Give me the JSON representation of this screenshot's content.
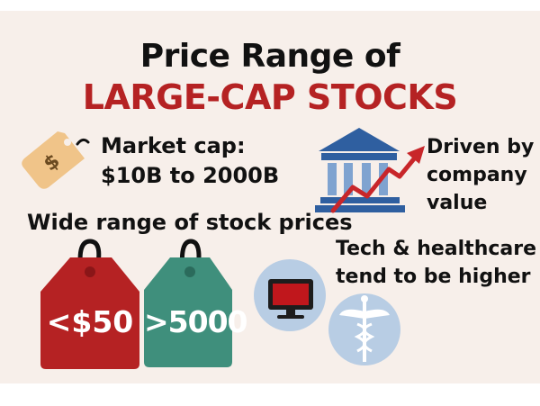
{
  "title": {
    "line1": "Price Range of",
    "line2": "LARGE-CAP STOCKS"
  },
  "market_cap": {
    "line1": "Market cap:",
    "line2": "$10B to 2000B"
  },
  "driven": {
    "line1": "Driven by",
    "line2": "company",
    "line3": "value"
  },
  "wide_range": "Wide range of stock prices",
  "tags": {
    "low": "<$50",
    "high": ">5000"
  },
  "tech": {
    "line1": "Tech & healthcare",
    "line2": "tend to be higher"
  },
  "colors": {
    "background": "#f7efea",
    "title_accent": "#b52223",
    "red_tag": "#b52223",
    "green_tag": "#3f8f7c",
    "bank_blue": "#2f5fa0",
    "circle_blue": "#b8cde4",
    "price_tag_tan": "#f0c489"
  },
  "icons": [
    "price-tag-icon",
    "bank-icon",
    "trend-arrow-icon",
    "red-price-tag-icon",
    "green-price-tag-icon",
    "monitor-icon",
    "caduceus-icon"
  ]
}
